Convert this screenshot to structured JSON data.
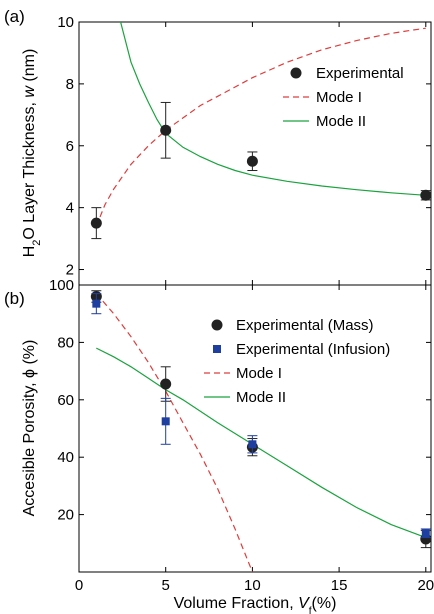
{
  "chart_data": [
    {
      "type": "scatter",
      "panel_label": "(a)",
      "ylabel": "H2O Layer Thickness, w (nm)",
      "ylabel_parts": {
        "a": "H",
        "sub": "2",
        "b": "O Layer Thickness, ",
        "ital": "w",
        "c": " (nm)"
      },
      "xlim": [
        0,
        20.3
      ],
      "ylim": [
        1.5,
        10
      ],
      "y_ticks": [
        2,
        4,
        6,
        8,
        10
      ],
      "x_tick_labels_shown": false,
      "legend_position": "top-right",
      "series": [
        {
          "name": "Experimental",
          "kind": "points",
          "color": "#222222",
          "marker": "circle",
          "x": [
            1,
            5,
            10,
            20
          ],
          "y": [
            3.5,
            6.5,
            5.5,
            4.4
          ],
          "err": [
            0.5,
            0.9,
            0.3,
            0.15
          ]
        },
        {
          "name": "Mode I",
          "kind": "line",
          "color": "#e03c3c",
          "dash": true,
          "x": [
            1,
            1.5,
            2,
            2.5,
            3,
            4,
            5,
            6,
            7,
            8,
            9,
            10,
            11,
            12,
            13,
            14,
            15,
            16,
            17,
            18,
            19,
            20
          ],
          "y": [
            3.4,
            4.1,
            4.6,
            5.0,
            5.4,
            6.0,
            6.5,
            6.9,
            7.3,
            7.6,
            7.9,
            8.2,
            8.45,
            8.7,
            8.9,
            9.1,
            9.25,
            9.4,
            9.52,
            9.63,
            9.72,
            9.8
          ]
        },
        {
          "name": "Mode II",
          "kind": "line",
          "color": "#1aa33e",
          "dash": false,
          "x": [
            2.4,
            3,
            3.5,
            4,
            4.5,
            5,
            6,
            7,
            8,
            9,
            10,
            12,
            14,
            16,
            18,
            20
          ],
          "y": [
            10.0,
            8.7,
            8.0,
            7.4,
            6.85,
            6.4,
            5.95,
            5.65,
            5.4,
            5.2,
            5.05,
            4.85,
            4.7,
            4.58,
            4.48,
            4.4
          ]
        }
      ]
    },
    {
      "type": "scatter",
      "panel_label": "(b)",
      "ylabel": "Accesible Porosity, ϕ (%)",
      "ylabel_parts": {
        "a": "Accesible Porosity, ",
        "phi": "ϕ",
        "b": " (%)"
      },
      "xlabel": "Volume Fraction, Vf(%)",
      "xlabel_parts": {
        "a": "Volume Fraction, ",
        "v": "V",
        "sub": "f",
        "b": "(%)"
      },
      "xlim": [
        0,
        20.3
      ],
      "ylim": [
        0,
        100
      ],
      "x_ticks": [
        0,
        5,
        10,
        15,
        20
      ],
      "y_ticks": [
        20,
        40,
        60,
        80,
        100
      ],
      "legend_position": "top-right",
      "series": [
        {
          "name": "Experimental (Mass)",
          "kind": "points",
          "color": "#222222",
          "marker": "circle",
          "x": [
            1,
            5,
            10,
            20
          ],
          "y": [
            96,
            65.5,
            43.5,
            11.5
          ],
          "err": [
            2,
            6,
            3,
            3
          ]
        },
        {
          "name": "Experimental (Infusion)",
          "kind": "points",
          "color": "#1f3fa0",
          "marker": "square",
          "x": [
            1,
            5,
            10,
            20
          ],
          "y": [
            93.5,
            52.5,
            44.5,
            13.5
          ],
          "err": [
            3.5,
            8,
            3,
            1.5
          ]
        },
        {
          "name": "Mode I",
          "kind": "line",
          "color": "#e03c3c",
          "dash": true,
          "x": [
            1,
            2,
            3,
            4,
            5,
            6,
            7,
            8,
            9,
            10
          ],
          "y": [
            97,
            90,
            82,
            73,
            63,
            52,
            41,
            29,
            15,
            0
          ]
        },
        {
          "name": "Mode II",
          "kind": "line",
          "color": "#1aa33e",
          "dash": false,
          "x": [
            1,
            2,
            3,
            4,
            5,
            6,
            8,
            10,
            12,
            14,
            16,
            18,
            20
          ],
          "y": [
            78,
            75,
            71.5,
            67.5,
            63.5,
            60,
            52,
            44.5,
            37,
            29.5,
            22.5,
            16.5,
            12
          ]
        }
      ]
    }
  ]
}
